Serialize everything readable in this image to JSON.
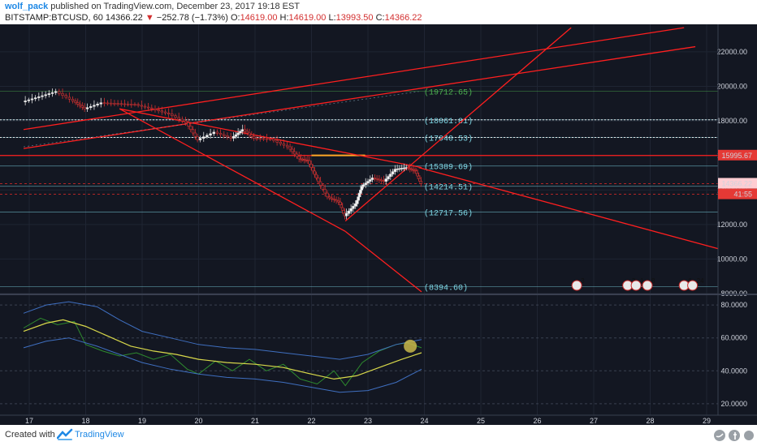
{
  "header": {
    "author": "wolf_pack",
    "published_text": " published on TradingView.com, December 23, 2017 19:18 EST",
    "symbol": "BITSTAMP:BTCUSD, 60",
    "last": "14366.22",
    "change": "−252.78 (−1.73%)",
    "o_label": "O:",
    "o_value": "14619.00",
    "h_label": "H:",
    "h_value": "14619.00",
    "l_label": "L:",
    "l_value": "13993.50",
    "c_label": "C:",
    "c_value": "14366.22"
  },
  "footer": {
    "created_with": "Created with",
    "brand": "TradingView"
  },
  "colors": {
    "background": "#131722",
    "trendline": "#ff1f1f",
    "level_text": "#7fd8e6",
    "green_level": "#4caf50",
    "price_tag": "#e53935",
    "bollinger": "#3f6fc0",
    "ma": "#d8d84a",
    "rsi": "#2e8b2e"
  },
  "chart_data": [
    {
      "type": "candlestick",
      "title": "BITSTAMP:BTCUSD, 60",
      "x_dates": [
        "17",
        "18",
        "19",
        "20",
        "21",
        "22",
        "23",
        "24",
        "25",
        "26",
        "27",
        "28",
        "29"
      ],
      "y_ticks": [
        "8000.00",
        "10000.00",
        "12000.00",
        "14000.00",
        "16000.00",
        "18000.00",
        "20000.00",
        "22000.00"
      ],
      "ylim": [
        8000,
        23500
      ],
      "price_path": [
        [
          16.9,
          19100
        ],
        [
          17.2,
          19400
        ],
        [
          17.5,
          19700
        ],
        [
          17.8,
          19150
        ],
        [
          18.0,
          18700
        ],
        [
          18.3,
          19050
        ],
        [
          18.6,
          19000
        ],
        [
          18.9,
          18950
        ],
        [
          19.2,
          18700
        ],
        [
          19.5,
          18400
        ],
        [
          19.8,
          17900
        ],
        [
          20.0,
          16900
        ],
        [
          20.3,
          17350
        ],
        [
          20.6,
          17000
        ],
        [
          20.8,
          17500
        ],
        [
          21.0,
          17000
        ],
        [
          21.3,
          16950
        ],
        [
          21.6,
          16500
        ],
        [
          21.8,
          15800
        ],
        [
          21.95,
          15700
        ],
        [
          22.1,
          14700
        ],
        [
          22.3,
          13600
        ],
        [
          22.5,
          13300
        ],
        [
          22.6,
          12500
        ],
        [
          22.8,
          13200
        ],
        [
          22.9,
          14200
        ],
        [
          23.1,
          14700
        ],
        [
          23.3,
          14500
        ],
        [
          23.5,
          15200
        ],
        [
          23.7,
          15300
        ],
        [
          23.85,
          15100
        ],
        [
          23.95,
          14366
        ]
      ],
      "horizontal_levels": [
        {
          "label": "(19712.65)",
          "value": 19712.65,
          "color": "#4caf50"
        },
        {
          "label": "(18061.81)",
          "value": 18061.81,
          "color": "#7fd8e6"
        },
        {
          "label": "(17040.53)",
          "value": 17040.53,
          "color": "#7fd8e6"
        },
        {
          "label": "(15389.69)",
          "value": 15389.69,
          "color": "#7fd8e6"
        },
        {
          "label": "(14214.51)",
          "value": 14214.51,
          "color": "#7fd8e6"
        },
        {
          "label": "(12717.56)",
          "value": 12717.56,
          "color": "#7fd8e6"
        },
        {
          "label": "(8394.60)",
          "value": 8394.6,
          "color": "#7fd8e6"
        }
      ],
      "price_tags": [
        {
          "label": "15995.67",
          "value": 15995.67
        },
        {
          "label": "14366.22",
          "value": 14366.22
        },
        {
          "label": "41:55",
          "value": 13750
        }
      ],
      "event_badges": [
        {
          "label": "3",
          "x": 26.7
        },
        {
          "label": "2",
          "x": 27.6
        },
        {
          "label": "1",
          "x": 27.75
        },
        {
          "label": "8",
          "x": 27.95
        },
        {
          "label": "6",
          "x": 28.6
        },
        {
          "label": "24",
          "x": 28.75
        }
      ]
    },
    {
      "type": "line",
      "title": "",
      "y_ticks": [
        "20.0000",
        "40.0000",
        "60.0000",
        "80.0000"
      ],
      "ylim": [
        15,
        85
      ],
      "series": [
        {
          "values": [
            [
              16.9,
              66
            ],
            [
              17.2,
              72
            ],
            [
              17.5,
              68
            ],
            [
              17.8,
              70
            ],
            [
              18.0,
              56
            ],
            [
              18.3,
              52
            ],
            [
              18.6,
              49
            ],
            [
              18.9,
              51
            ],
            [
              19.2,
              47
            ],
            [
              19.5,
              50
            ],
            [
              19.8,
              41
            ],
            [
              20.0,
              38
            ],
            [
              20.3,
              46
            ],
            [
              20.6,
              40
            ],
            [
              20.9,
              47
            ],
            [
              21.2,
              40
            ],
            [
              21.5,
              44
            ],
            [
              21.8,
              35
            ],
            [
              22.1,
              32
            ],
            [
              22.4,
              40
            ],
            [
              22.6,
              31
            ],
            [
              22.9,
              45
            ],
            [
              23.2,
              52
            ],
            [
              23.5,
              56
            ],
            [
              23.7,
              57
            ],
            [
              23.95,
              54
            ]
          ]
        },
        {
          "values": [
            [
              16.9,
              64
            ],
            [
              17.3,
              69
            ],
            [
              17.6,
              71
            ],
            [
              18.0,
              67
            ],
            [
              18.4,
              61
            ],
            [
              18.8,
              55
            ],
            [
              19.2,
              52
            ],
            [
              19.6,
              50
            ],
            [
              20.0,
              47
            ],
            [
              20.5,
              45
            ],
            [
              21.0,
              44
            ],
            [
              21.5,
              42
            ],
            [
              22.0,
              38
            ],
            [
              22.4,
              35
            ],
            [
              22.8,
              37
            ],
            [
              23.2,
              42
            ],
            [
              23.6,
              47
            ],
            [
              23.95,
              51
            ]
          ]
        },
        {
          "values": [
            [
              16.9,
              75
            ],
            [
              17.3,
              80
            ],
            [
              17.7,
              82
            ],
            [
              18.2,
              79
            ],
            [
              18.6,
              71
            ],
            [
              19.0,
              64
            ],
            [
              19.5,
              60
            ],
            [
              20.0,
              56
            ],
            [
              20.5,
              54
            ],
            [
              21.0,
              53
            ],
            [
              21.5,
              51
            ],
            [
              22.0,
              49
            ],
            [
              22.5,
              47
            ],
            [
              23.0,
              50
            ],
            [
              23.5,
              56
            ],
            [
              23.95,
              59
            ]
          ]
        },
        {
          "values": [
            [
              16.9,
              54
            ],
            [
              17.3,
              58
            ],
            [
              17.7,
              60
            ],
            [
              18.2,
              55
            ],
            [
              18.6,
              50
            ],
            [
              19.0,
              45
            ],
            [
              19.5,
              41
            ],
            [
              20.0,
              38
            ],
            [
              20.5,
              36
            ],
            [
              21.0,
              35
            ],
            [
              21.5,
              33
            ],
            [
              22.0,
              30
            ],
            [
              22.5,
              27
            ],
            [
              23.0,
              28
            ],
            [
              23.5,
              33
            ],
            [
              23.95,
              41
            ]
          ]
        }
      ]
    }
  ]
}
